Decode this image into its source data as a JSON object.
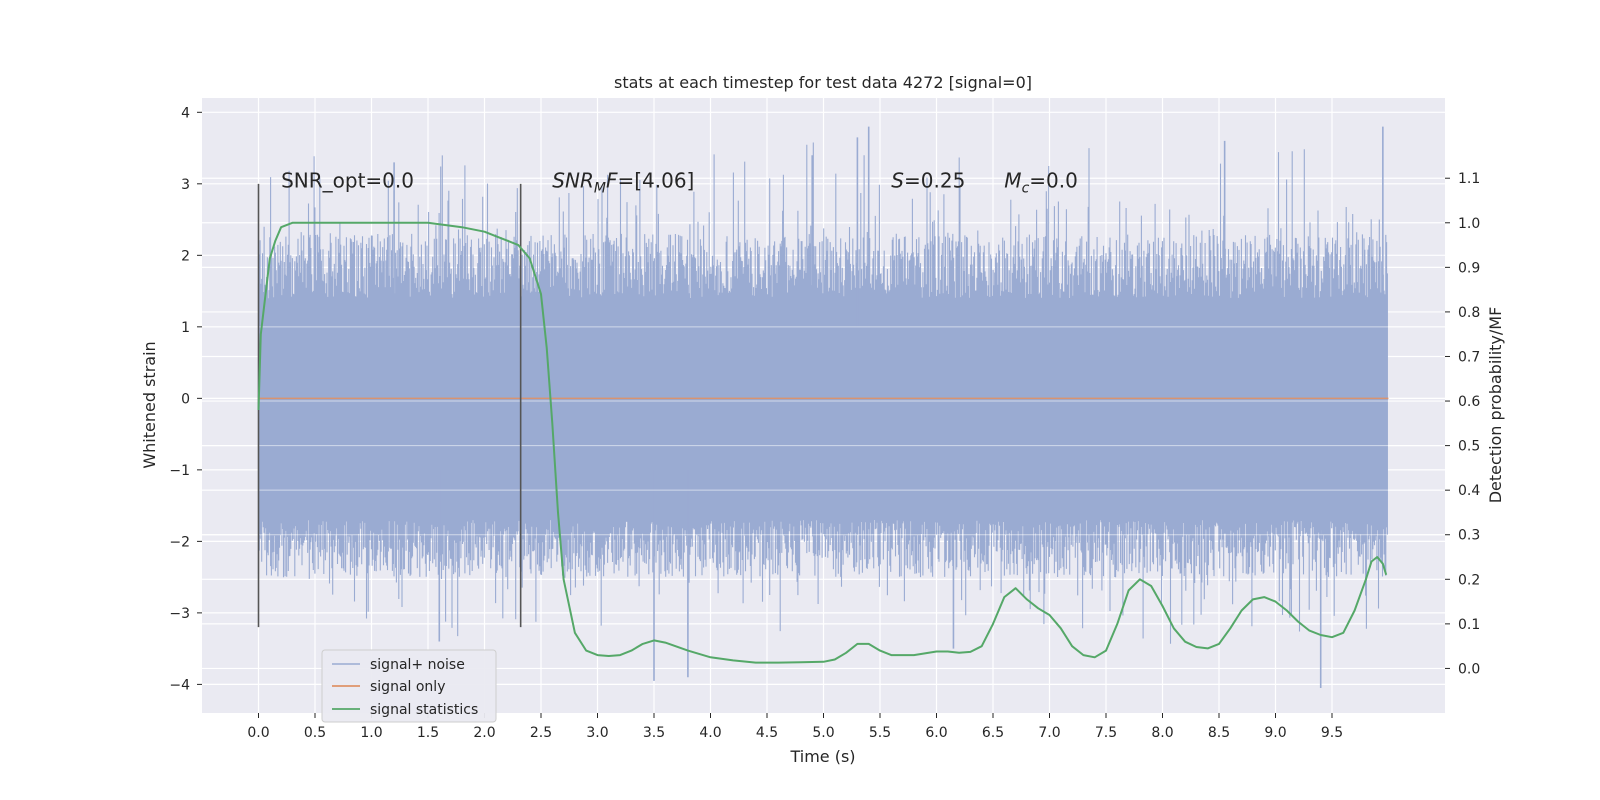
{
  "chart_data": {
    "type": "line",
    "title": "stats at each timestep for test data 4272 [signal=0]",
    "xlabel": "Time (s)",
    "ylabel": "Whitened strain",
    "y2label": "Detection probability/MF",
    "xlim": [
      -0.5,
      10.5
    ],
    "ylim": [
      -4.4,
      4.2
    ],
    "y2lim": [
      -0.1,
      1.28
    ],
    "x_ticks": [
      "0.0",
      "0.5",
      "1.0",
      "1.5",
      "2.0",
      "2.5",
      "3.0",
      "3.5",
      "4.0",
      "4.5",
      "5.0",
      "5.5",
      "6.0",
      "6.5",
      "7.0",
      "7.5",
      "8.0",
      "8.5",
      "9.0",
      "9.5"
    ],
    "y_ticks": [
      "4",
      "3",
      "2",
      "1",
      "0",
      "−1",
      "−2",
      "−3",
      "−4"
    ],
    "y2_ticks": [
      "1.1",
      "1.0",
      "0.9",
      "0.8",
      "0.7",
      "0.6",
      "0.5",
      "0.4",
      "0.3",
      "0.2",
      "0.1",
      "0.0"
    ],
    "grid": true,
    "legend_position": "lower-left",
    "colors": {
      "background": "#eaeaf2",
      "noise": "#9aabd2",
      "signal": "#dd8452",
      "statistics": "#55a868",
      "vline": "#555555"
    },
    "vertical_lines": [
      {
        "x": 0.0,
        "y_range": [
          -3.2,
          3.0
        ]
      },
      {
        "x": 2.32,
        "y_range": [
          -3.2,
          3.0
        ]
      }
    ],
    "annotations": [
      {
        "text": "SNR_opt=0.0",
        "x": 0.2,
        "y": 2.95
      },
      {
        "text_italic": "SNR",
        "text_sub": "M",
        "text_italic2": "F",
        "text_rest": "=[4.06]",
        "x": 2.6,
        "y": 2.95
      },
      {
        "text_italic": "S",
        "text_rest": "=0.25",
        "x": 5.6,
        "y": 2.95
      },
      {
        "text_italic": "M",
        "text_sub": "c",
        "text_rest": "=0.0",
        "x": 6.6,
        "y": 2.95
      }
    ],
    "series": [
      {
        "name": "signal+ noise",
        "axis": "left",
        "kind": "noise_band",
        "x_range": [
          0.0,
          9.99
        ],
        "band_upper_approx": 1.6,
        "band_lower_approx": -1.9,
        "spikes": [
          {
            "x": 3.5,
            "y": -3.95
          },
          {
            "x": 3.8,
            "y": -3.9
          },
          {
            "x": 9.4,
            "y": -4.05
          },
          {
            "x": 1.6,
            "y": -3.4
          },
          {
            "x": 6.15,
            "y": -3.5
          },
          {
            "x": 5.4,
            "y": 3.8
          },
          {
            "x": 8.55,
            "y": 3.6
          },
          {
            "x": 9.95,
            "y": 3.8
          },
          {
            "x": 5.3,
            "y": 3.65
          },
          {
            "x": 1.2,
            "y": 3.3
          },
          {
            "x": 4.9,
            "y": 3.4
          }
        ]
      },
      {
        "name": "signal only",
        "axis": "left",
        "x": [
          0.0,
          10.0
        ],
        "values": [
          0.0,
          0.0
        ]
      },
      {
        "name": "signal statistics",
        "axis": "right",
        "x": [
          0.0,
          0.02,
          0.1,
          0.15,
          0.2,
          0.3,
          0.5,
          1.0,
          1.5,
          1.8,
          2.0,
          2.1,
          2.2,
          2.3,
          2.4,
          2.5,
          2.55,
          2.6,
          2.65,
          2.7,
          2.8,
          2.9,
          3.0,
          3.1,
          3.2,
          3.3,
          3.4,
          3.5,
          3.6,
          3.8,
          4.0,
          4.2,
          4.4,
          4.6,
          4.8,
          5.0,
          5.1,
          5.2,
          5.3,
          5.4,
          5.5,
          5.6,
          5.8,
          6.0,
          6.1,
          6.2,
          6.3,
          6.4,
          6.5,
          6.6,
          6.7,
          6.8,
          6.9,
          7.0,
          7.1,
          7.2,
          7.3,
          7.4,
          7.5,
          7.6,
          7.7,
          7.8,
          7.9,
          8.0,
          8.1,
          8.2,
          8.3,
          8.4,
          8.5,
          8.6,
          8.7,
          8.8,
          8.9,
          9.0,
          9.1,
          9.2,
          9.3,
          9.4,
          9.5,
          9.6,
          9.7,
          9.8,
          9.85,
          9.9,
          9.95,
          9.98
        ],
        "values": [
          0.58,
          0.75,
          0.92,
          0.96,
          0.99,
          1.0,
          1.0,
          1.0,
          1.0,
          0.99,
          0.98,
          0.97,
          0.96,
          0.95,
          0.92,
          0.84,
          0.72,
          0.55,
          0.35,
          0.2,
          0.08,
          0.04,
          0.03,
          0.028,
          0.03,
          0.04,
          0.055,
          0.063,
          0.058,
          0.04,
          0.025,
          0.018,
          0.013,
          0.013,
          0.014,
          0.015,
          0.02,
          0.035,
          0.055,
          0.055,
          0.04,
          0.03,
          0.03,
          0.038,
          0.038,
          0.035,
          0.037,
          0.05,
          0.1,
          0.16,
          0.18,
          0.155,
          0.135,
          0.12,
          0.09,
          0.05,
          0.03,
          0.025,
          0.04,
          0.1,
          0.175,
          0.2,
          0.185,
          0.14,
          0.09,
          0.06,
          0.048,
          0.045,
          0.055,
          0.09,
          0.13,
          0.155,
          0.16,
          0.15,
          0.13,
          0.105,
          0.085,
          0.075,
          0.07,
          0.08,
          0.13,
          0.2,
          0.24,
          0.25,
          0.235,
          0.21
        ]
      }
    ]
  }
}
